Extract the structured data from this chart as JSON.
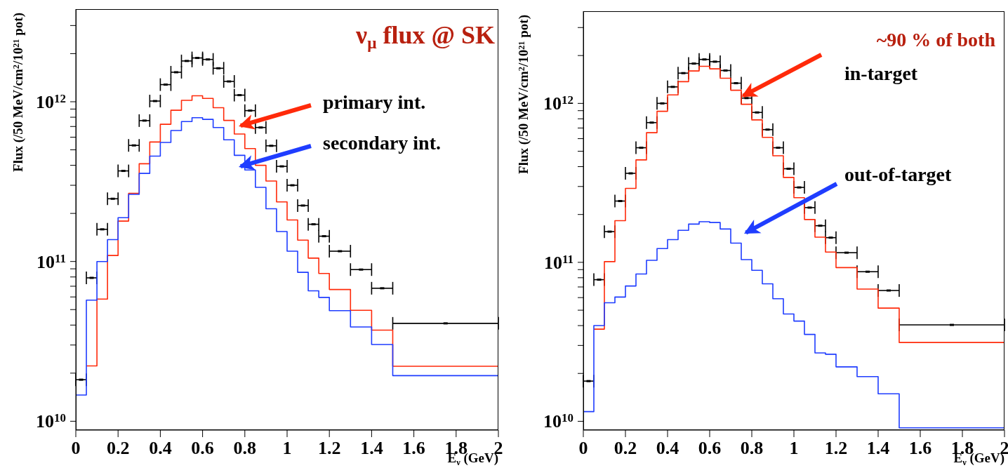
{
  "chart_data": [
    {
      "type": "histogram",
      "xlabel": "E$_{ν}$ (GeV)",
      "ylabel": "Flux (/50 MeV/cm$^{2}$/10$^{21}$ pot)",
      "xlim": [
        0,
        2
      ],
      "xticks": [
        0,
        0.2,
        0.4,
        0.6,
        0.8,
        1,
        1.2,
        1.4,
        1.6,
        1.8,
        2
      ],
      "ylim": [
        8800000000.0,
        3800000000000.0
      ],
      "log": true,
      "yticks": [
        {
          "value": 10000000000.0,
          "label": "10$^{10}$"
        },
        {
          "value": 20000000000.0,
          "label": null
        },
        {
          "value": 30000000000.0,
          "label": null
        },
        {
          "value": 40000000000.0,
          "label": null
        },
        {
          "value": 50000000000.0,
          "label": null
        },
        {
          "value": 60000000000.0,
          "label": null
        },
        {
          "value": 70000000000.0,
          "label": null
        },
        {
          "value": 80000000000.0,
          "label": null
        },
        {
          "value": 90000000000.0,
          "label": null
        },
        {
          "value": 100000000000.0,
          "label": "10$^{11}$"
        },
        {
          "value": 200000000000.0,
          "label": null
        },
        {
          "value": 300000000000.0,
          "label": null
        },
        {
          "value": 400000000000.0,
          "label": null
        },
        {
          "value": 500000000000.0,
          "label": null
        },
        {
          "value": 600000000000.0,
          "label": null
        },
        {
          "value": 700000000000.0,
          "label": null
        },
        {
          "value": 800000000000.0,
          "label": null
        },
        {
          "value": 900000000000.0,
          "label": null
        },
        {
          "value": 1000000000000.0,
          "label": "10$^{12}$"
        },
        {
          "value": 2000000000000.0,
          "label": null
        },
        {
          "value": 3000000000000.0,
          "label": null
        }
      ],
      "annotations": [
        "ν$_{μ}$ flux @ SK",
        "primary int.",
        "secondary int."
      ],
      "series": [
        {
          "type": "scatter",
          "color": "#000000",
          "x": [
            0.025,
            0.075,
            0.125,
            0.175,
            0.225,
            0.275,
            0.325,
            0.375,
            0.425,
            0.475,
            0.525,
            0.575,
            0.625,
            0.675,
            0.725,
            0.775,
            0.825,
            0.875,
            0.925,
            0.975,
            1.025,
            1.075,
            1.125,
            1.175,
            1.25,
            1.35,
            1.45,
            1.75
          ],
          "values": [
            18200000000.0,
            79000000000.0,
            159000000000.0,
            247000000000.0,
            369000000000.0,
            533000000000.0,
            762000000000.0,
            1010000000000.0,
            1280000000000.0,
            1530000000000.0,
            1800000000000.0,
            1880000000000.0,
            1840000000000.0,
            1620000000000.0,
            1340000000000.0,
            1100000000000.0,
            880000000000.0,
            690000000000.0,
            530000000000.0,
            394000000000.0,
            300000000000.0,
            224000000000.0,
            171000000000.0,
            144000000000.0,
            116000000000.0,
            89000000000.0,
            68000000000.0,
            41000000000.0
          ],
          "xerrors": [
            0.025,
            0.025,
            0.025,
            0.025,
            0.025,
            0.025,
            0.025,
            0.025,
            0.025,
            0.025,
            0.025,
            0.025,
            0.025,
            0.025,
            0.025,
            0.025,
            0.025,
            0.025,
            0.025,
            0.025,
            0.025,
            0.025,
            0.025,
            0.025,
            0.05,
            0.05,
            0.05,
            0.25
          ]
        },
        {
          "color": "#ff2a0a",
          "bins": [
            0.05,
            0.1,
            0.15,
            0.2,
            0.25,
            0.3,
            0.35,
            0.4,
            0.45,
            0.5,
            0.55,
            0.6,
            0.65,
            0.7,
            0.75,
            0.8,
            0.85,
            0.9,
            0.95,
            1.0,
            1.05,
            1.1,
            1.15,
            1.2,
            1.3,
            1.4,
            1.5,
            2
          ],
          "values": [
            22200000000.0,
            58200000000.0,
            109000000000.0,
            179000000000.0,
            267000000000.0,
            409000000000.0,
            560000000000.0,
            723000000000.0,
            885000000000.0,
            1020000000000.0,
            1090000000000.0,
            1050000000000.0,
            918000000000.0,
            764000000000.0,
            628000000000.0,
            509000000000.0,
            400000000000.0,
            319000000000.0,
            236000000000.0,
            182000000000.0,
            136000000000.0,
            105000000000.0,
            84100000000.0,
            66800000000.0,
            49500000000.0,
            37200000000.0,
            22100000000.0
          ]
        },
        {
          "color": "#1f3dff",
          "bins": [
            0,
            0.05,
            0.1,
            0.15,
            0.2,
            0.25,
            0.3,
            0.35,
            0.4,
            0.45,
            0.5,
            0.55,
            0.6,
            0.65,
            0.7,
            0.75,
            0.8,
            0.85,
            0.9,
            0.95,
            1.0,
            1.05,
            1.1,
            1.15,
            1.2,
            1.3,
            1.4,
            1.5,
            2
          ],
          "values": [
            14600000000.0,
            57300000000.0,
            100000000000.0,
            137000000000.0,
            188000000000.0,
            263000000000.0,
            356000000000.0,
            457000000000.0,
            556000000000.0,
            661000000000.0,
            752000000000.0,
            794000000000.0,
            776000000000.0,
            690000000000.0,
            578000000000.0,
            462000000000.0,
            374000000000.0,
            291000000000.0,
            214000000000.0,
            154000000000.0,
            116000000000.0,
            85500000000.0,
            65500000000.0,
            59600000000.0,
            49200000000.0,
            38900000000.0,
            30200000000.0,
            19300000000.0
          ]
        }
      ]
    },
    {
      "type": "histogram",
      "xlabel": "E$_{ν}$ (GeV)",
      "ylabel": "Flux (/50 MeV/cm$^{2}$/10$^{21}$ pot)",
      "xlim": [
        0,
        2
      ],
      "xticks": [
        0,
        0.2,
        0.4,
        0.6,
        0.8,
        1,
        1.2,
        1.4,
        1.6,
        1.8,
        2
      ],
      "ylim": [
        8800000000.0,
        3800000000000.0
      ],
      "log": true,
      "yticks": [
        {
          "value": 10000000000.0,
          "label": "10$^{10}$"
        },
        {
          "value": 20000000000.0,
          "label": null
        },
        {
          "value": 30000000000.0,
          "label": null
        },
        {
          "value": 40000000000.0,
          "label": null
        },
        {
          "value": 50000000000.0,
          "label": null
        },
        {
          "value": 60000000000.0,
          "label": null
        },
        {
          "value": 70000000000.0,
          "label": null
        },
        {
          "value": 80000000000.0,
          "label": null
        },
        {
          "value": 90000000000.0,
          "label": null
        },
        {
          "value": 100000000000.0,
          "label": "10$^{11}$"
        },
        {
          "value": 200000000000.0,
          "label": null
        },
        {
          "value": 300000000000.0,
          "label": null
        },
        {
          "value": 400000000000.0,
          "label": null
        },
        {
          "value": 500000000000.0,
          "label": null
        },
        {
          "value": 600000000000.0,
          "label": null
        },
        {
          "value": 700000000000.0,
          "label": null
        },
        {
          "value": 800000000000.0,
          "label": null
        },
        {
          "value": 900000000000.0,
          "label": null
        },
        {
          "value": 1000000000000.0,
          "label": "10$^{12}$"
        },
        {
          "value": 2000000000000.0,
          "label": null
        },
        {
          "value": 3000000000000.0,
          "label": null
        }
      ],
      "annotations": [
        "~90 % of both",
        {
          "text": "in-target",
          "x": 0.75,
          "y": 1100000000000.0
        },
        "out-of-target"
      ],
      "series": [
        {
          "type": "scatter",
          "color": "#000000",
          "x": [
            0.025,
            0.075,
            0.125,
            0.175,
            0.225,
            0.275,
            0.325,
            0.375,
            0.425,
            0.475,
            0.525,
            0.575,
            0.625,
            0.675,
            0.725,
            0.775,
            0.825,
            0.875,
            0.925,
            0.975,
            1.025,
            1.075,
            1.125,
            1.175,
            1.25,
            1.35,
            1.45,
            1.75
          ],
          "values": [
            17900000000.0,
            77800000000.0,
            156000000000.0,
            243000000000.0,
            363000000000.0,
            526000000000.0,
            757000000000.0,
            1000000000000.0,
            1270000000000.0,
            1550000000000.0,
            1780000000000.0,
            1890000000000.0,
            1830000000000.0,
            1610000000000.0,
            1340000000000.0,
            1080000000000.0,
            877000000000.0,
            684000000000.0,
            526000000000.0,
            388000000000.0,
            296000000000.0,
            221000000000.0,
            170000000000.0,
            143000000000.0,
            115000000000.0,
            87300000000.0,
            66500000000.0,
            40400000000.0
          ],
          "xerrors": [
            0.025,
            0.025,
            0.025,
            0.025,
            0.025,
            0.025,
            0.025,
            0.025,
            0.025,
            0.025,
            0.025,
            0.025,
            0.025,
            0.025,
            0.025,
            0.025,
            0.025,
            0.025,
            0.025,
            0.025,
            0.025,
            0.025,
            0.025,
            0.025,
            0.05,
            0.05,
            0.05,
            0.25
          ]
        },
        {
          "color": "#ff2a0a",
          "bins": [
            0.05,
            0.1,
            0.15,
            0.2,
            0.25,
            0.3,
            0.35,
            0.4,
            0.45,
            0.5,
            0.55,
            0.6,
            0.65,
            0.7,
            0.75,
            0.8,
            0.85,
            0.9,
            0.95,
            1.0,
            1.05,
            1.1,
            1.15,
            1.2,
            1.3,
            1.4,
            1.5,
            2
          ],
          "values": [
            38000000000.0,
            101000000000.0,
            183000000000.0,
            292000000000.0,
            441000000000.0,
            654000000000.0,
            892000000000.0,
            1130000000000.0,
            1370000000000.0,
            1600000000000.0,
            1710000000000.0,
            1650000000000.0,
            1440000000000.0,
            1210000000000.0,
            987000000000.0,
            787000000000.0,
            611000000000.0,
            468000000000.0,
            342000000000.0,
            255000000000.0,
            186000000000.0,
            144000000000.0,
            116000000000.0,
            92700000000.0,
            67900000000.0,
            51500000000.0,
            31300000000.0
          ]
        },
        {
          "color": "#1f3dff",
          "bins": [
            0,
            0.05,
            0.1,
            0.15,
            0.2,
            0.25,
            0.3,
            0.35,
            0.4,
            0.45,
            0.5,
            0.55,
            0.6,
            0.65,
            0.7,
            0.75,
            0.8,
            0.85,
            0.9,
            0.95,
            1.0,
            1.05,
            1.1,
            1.15,
            1.2,
            1.3,
            1.4,
            1.5,
            2
          ],
          "values": [
            11500000000.0,
            40000000000.0,
            55700000000.0,
            60500000000.0,
            71000000000.0,
            84500000000.0,
            103000000000.0,
            122000000000.0,
            139000000000.0,
            159000000000.0,
            174000000000.0,
            180000000000.0,
            178000000000.0,
            162000000000.0,
            132000000000.0,
            104000000000.0,
            89100000000.0,
            73300000000.0,
            59000000000.0,
            47300000000.0,
            42700000000.0,
            35200000000.0,
            26900000000.0,
            26400000000.0,
            22000000000.0,
            19100000000.0,
            14900000000.0,
            9100000000.0
          ]
        }
      ]
    }
  ]
}
